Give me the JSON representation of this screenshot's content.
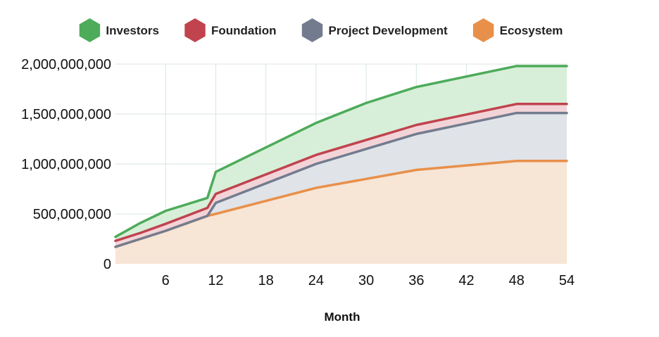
{
  "chart_data": {
    "type": "area",
    "stacked": true,
    "title": "",
    "xlabel": "Month",
    "ylabel": "",
    "xlim": [
      0,
      54
    ],
    "ylim": [
      0,
      2000000000
    ],
    "x_ticks": [
      6,
      12,
      18,
      24,
      30,
      36,
      42,
      48,
      54
    ],
    "x_tick_labels": [
      "6",
      "12",
      "18",
      "24",
      "30",
      "36",
      "42",
      "48",
      "54"
    ],
    "y_ticks": [
      0,
      500000000,
      1000000000,
      1500000000,
      2000000000
    ],
    "y_tick_labels": [
      "0",
      "500,000,000",
      "1,000,000,000",
      "1,500,000,000",
      "2,000,000,000"
    ],
    "grid": true,
    "legend_position": "top",
    "x": [
      0,
      3,
      6,
      11,
      12,
      24,
      30,
      36,
      48,
      54
    ],
    "series": [
      {
        "name": "Ecosystem",
        "color": "#e8904a",
        "fill": "#f7e5d6",
        "values": [
          170000000,
          250000000,
          330000000,
          480000000,
          500000000,
          760000000,
          850000000,
          940000000,
          1030000000,
          1030000000
        ]
      },
      {
        "name": "Project Development",
        "color": "#737c8e",
        "fill": "#e0e3e8",
        "values": [
          0,
          0,
          0,
          0,
          110000000,
          240000000,
          300000000,
          360000000,
          480000000,
          480000000
        ]
      },
      {
        "name": "Foundation",
        "color": "#c0434e",
        "fill": "#f2d4d8",
        "values": [
          60000000,
          60000000,
          70000000,
          80000000,
          90000000,
          90000000,
          90000000,
          90000000,
          90000000,
          90000000
        ]
      },
      {
        "name": "Investors",
        "color": "#4dab5a",
        "fill": "#d7efd8",
        "values": [
          40000000,
          100000000,
          130000000,
          100000000,
          220000000,
          320000000,
          370000000,
          380000000,
          380000000,
          380000000
        ]
      }
    ],
    "legend_order": [
      "Investors",
      "Foundation",
      "Project Development",
      "Ecosystem"
    ]
  },
  "colors": {
    "grid": "#d9e6dd",
    "axis_text": "#111111"
  },
  "icons": {
    "legend_marker": "hexagon-icon"
  }
}
